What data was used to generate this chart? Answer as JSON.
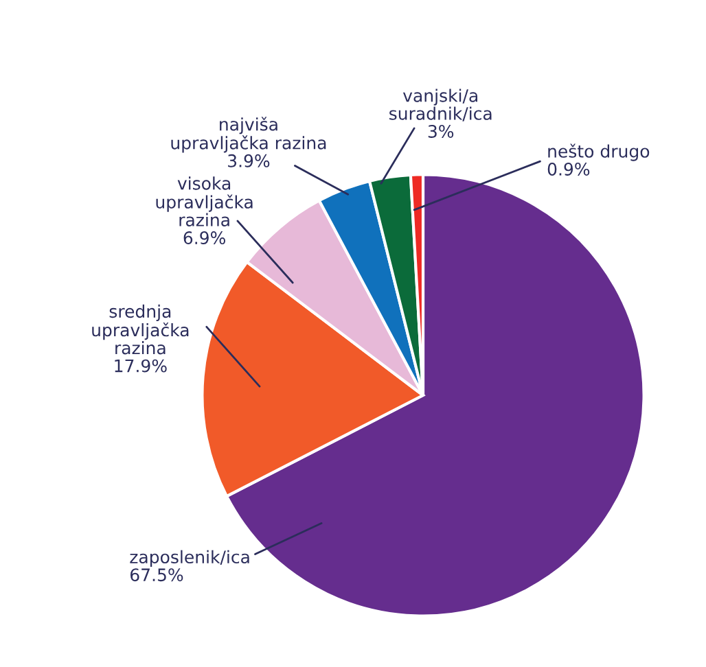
{
  "chart_data": {
    "type": "pie",
    "categories": [
      "zaposlenik/ica",
      "srednja\nupravljačka\nrazina",
      "visoka\nupravljačka\nrazina",
      "najviša\nupravljačka razina",
      "vanjski/a\nsuradnik/ica",
      "nešto drugo"
    ],
    "values": [
      67.5,
      17.9,
      6.9,
      3.9,
      3,
      0.9
    ],
    "colors": [
      "#652d8e",
      "#f15a29",
      "#e7b9d8",
      "#1071bc",
      "#0b6b3a",
      "#ee2a24"
    ],
    "value_labels": [
      "67.5%",
      "17.9%",
      "6.9%",
      "3.9%",
      "3%",
      "0.9%"
    ]
  }
}
